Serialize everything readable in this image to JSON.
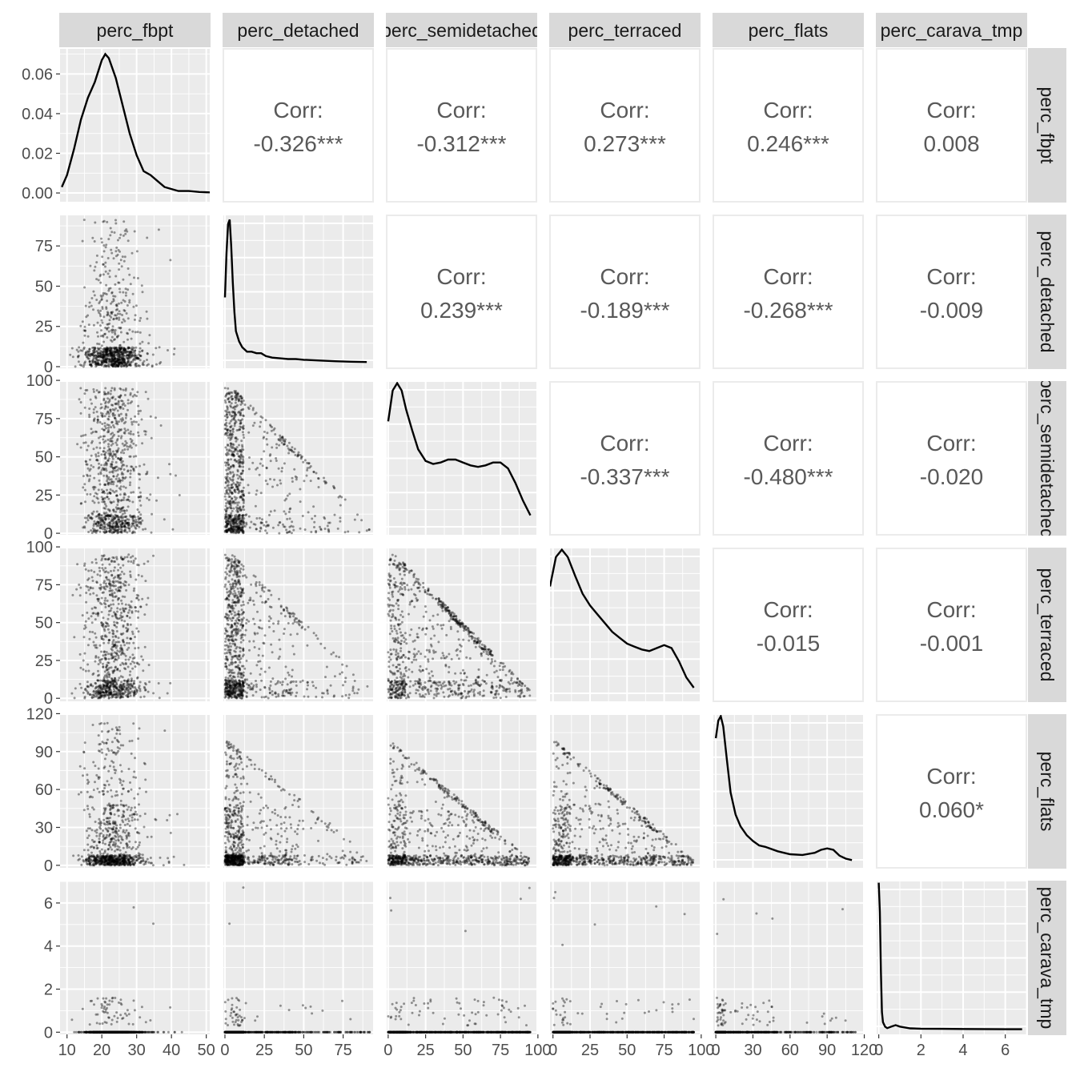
{
  "variables": [
    "perc_fbpt",
    "perc_detached",
    "perc_semidetached",
    "perc_terraced",
    "perc_flats",
    "perc_carava_tmp"
  ],
  "column_strip_labels": [
    "perc_fbpt",
    "perc_detached",
    "perc_semidetached",
    "perc_terraced",
    "perc_flats",
    "perc_carava_tmp"
  ],
  "row_strip_labels": [
    "perc_fbpt",
    "perc_detached",
    "perc_semidetached",
    "perc_terraced",
    "perc_flats",
    "perc_carava_tmp"
  ],
  "colors": {
    "panel_bg": "#ebebeb",
    "grid_major": "#ffffff",
    "strip_bg": "#d9d9d9",
    "corr_text": "#595959",
    "points": "#000000",
    "density_line": "#000000"
  },
  "chart_data": {
    "type": "scatterplot-matrix",
    "title": "",
    "grid": true,
    "legend": "none",
    "axis_ranges": {
      "perc_fbpt": [
        8,
        51
      ],
      "perc_detached": [
        -1,
        94
      ],
      "perc_semidetached": [
        -1,
        99
      ],
      "perc_terraced": [
        -2,
        99
      ],
      "perc_flats": [
        -2,
        119
      ],
      "perc_carava_tmp": [
        -0.1,
        7.0
      ]
    },
    "x_tick_labels": {
      "perc_fbpt": [
        "10",
        "20",
        "30",
        "40",
        "50"
      ],
      "perc_detached": [
        "0",
        "25",
        "50",
        "75"
      ],
      "perc_semidetached": [
        "0",
        "25",
        "50",
        "75",
        "100"
      ],
      "perc_terraced": [
        "0",
        "25",
        "50",
        "75",
        "100"
      ],
      "perc_flats": [
        "0",
        "30",
        "60",
        "90",
        "120"
      ],
      "perc_carava_tmp": [
        "0",
        "2",
        "4",
        "6"
      ]
    },
    "y_tick_labels": {
      "perc_fbpt_density": [
        "0.00",
        "0.02",
        "0.04",
        "0.06"
      ],
      "perc_detached": [
        "0",
        "25",
        "50",
        "75"
      ],
      "perc_semidetached": [
        "0",
        "25",
        "50",
        "75",
        "100"
      ],
      "perc_terraced": [
        "0",
        "25",
        "50",
        "75",
        "100"
      ],
      "perc_flats": [
        "0",
        "30",
        "60",
        "90",
        "120"
      ],
      "perc_carava_tmp": [
        "0",
        "2",
        "4",
        "6"
      ]
    },
    "correlations": [
      {
        "row": "perc_fbpt",
        "col": "perc_detached",
        "label": "Corr:",
        "value": "-0.326***"
      },
      {
        "row": "perc_fbpt",
        "col": "perc_semidetached",
        "label": "Corr:",
        "value": "-0.312***"
      },
      {
        "row": "perc_fbpt",
        "col": "perc_terraced",
        "label": "Corr:",
        "value": "0.273***"
      },
      {
        "row": "perc_fbpt",
        "col": "perc_flats",
        "label": "Corr:",
        "value": "0.246***"
      },
      {
        "row": "perc_fbpt",
        "col": "perc_carava_tmp",
        "label": "Corr:",
        "value": "0.008"
      },
      {
        "row": "perc_detached",
        "col": "perc_semidetached",
        "label": "Corr:",
        "value": "0.239***"
      },
      {
        "row": "perc_detached",
        "col": "perc_terraced",
        "label": "Corr:",
        "value": "-0.189***"
      },
      {
        "row": "perc_detached",
        "col": "perc_flats",
        "label": "Corr:",
        "value": "-0.268***"
      },
      {
        "row": "perc_detached",
        "col": "perc_carava_tmp",
        "label": "Corr:",
        "value": "-0.009"
      },
      {
        "row": "perc_semidetached",
        "col": "perc_terraced",
        "label": "Corr:",
        "value": "-0.337***"
      },
      {
        "row": "perc_semidetached",
        "col": "perc_flats",
        "label": "Corr:",
        "value": "-0.480***"
      },
      {
        "row": "perc_semidetached",
        "col": "perc_carava_tmp",
        "label": "Corr:",
        "value": "-0.020"
      },
      {
        "row": "perc_terraced",
        "col": "perc_flats",
        "label": "Corr:",
        "value": "-0.015"
      },
      {
        "row": "perc_terraced",
        "col": "perc_carava_tmp",
        "label": "Corr:",
        "value": "-0.001"
      },
      {
        "row": "perc_flats",
        "col": "perc_carava_tmp",
        "label": "Corr:",
        "value": "0.060*"
      }
    ],
    "densities": [
      {
        "variable": "perc_fbpt",
        "y_range": [
          -0.002,
          0.072
        ],
        "x": [
          8.5,
          10,
          12,
          14,
          16,
          18,
          20,
          21,
          22,
          24,
          26,
          28,
          30,
          32,
          34,
          36,
          38,
          40,
          42,
          45,
          48,
          51
        ],
        "y": [
          0.003,
          0.009,
          0.022,
          0.037,
          0.048,
          0.056,
          0.067,
          0.07,
          0.068,
          0.058,
          0.044,
          0.03,
          0.019,
          0.011,
          0.009,
          0.006,
          0.003,
          0.002,
          0.001,
          0.001,
          0.0005,
          0.0003
        ]
      },
      {
        "variable": "perc_detached",
        "y_range": [
          0,
          1
        ],
        "x": [
          0,
          1,
          2,
          3,
          4,
          5,
          6,
          7,
          9,
          11,
          14,
          17,
          20,
          23,
          26,
          30,
          35,
          40,
          45,
          50,
          60,
          70,
          80,
          90
        ],
        "y": [
          0.45,
          0.75,
          0.95,
          0.98,
          0.8,
          0.55,
          0.35,
          0.22,
          0.15,
          0.11,
          0.08,
          0.08,
          0.07,
          0.07,
          0.05,
          0.04,
          0.035,
          0.03,
          0.03,
          0.025,
          0.02,
          0.015,
          0.012,
          0.01
        ]
      },
      {
        "variable": "perc_semidetached",
        "y_range": [
          0,
          1
        ],
        "x": [
          0,
          3,
          6,
          9,
          12,
          16,
          20,
          25,
          30,
          35,
          40,
          45,
          50,
          55,
          60,
          65,
          70,
          75,
          80,
          85,
          90,
          95
        ],
        "y": [
          0.74,
          0.95,
          1.0,
          0.95,
          0.82,
          0.68,
          0.55,
          0.47,
          0.45,
          0.46,
          0.48,
          0.48,
          0.46,
          0.44,
          0.43,
          0.44,
          0.46,
          0.46,
          0.42,
          0.32,
          0.2,
          0.1
        ]
      },
      {
        "variable": "perc_terraced",
        "y_range": [
          0,
          1
        ],
        "x": [
          -2,
          2,
          6,
          10,
          15,
          20,
          25,
          30,
          35,
          40,
          45,
          50,
          55,
          60,
          65,
          70,
          75,
          80,
          85,
          90,
          95
        ],
        "y": [
          0.75,
          0.95,
          1.0,
          0.95,
          0.82,
          0.7,
          0.62,
          0.56,
          0.5,
          0.44,
          0.4,
          0.36,
          0.34,
          0.32,
          0.31,
          0.33,
          0.35,
          0.33,
          0.24,
          0.13,
          0.06
        ]
      },
      {
        "variable": "perc_flats",
        "y_range": [
          0,
          1
        ],
        "x": [
          0,
          2,
          4,
          6,
          9,
          12,
          16,
          20,
          25,
          30,
          35,
          40,
          50,
          60,
          70,
          80,
          85,
          90,
          95,
          100,
          105,
          110
        ],
        "y": [
          0.85,
          0.97,
          1.0,
          0.93,
          0.7,
          0.48,
          0.33,
          0.25,
          0.19,
          0.15,
          0.12,
          0.11,
          0.08,
          0.06,
          0.055,
          0.07,
          0.09,
          0.1,
          0.09,
          0.05,
          0.03,
          0.02
        ]
      },
      {
        "variable": "perc_carava_tmp",
        "y_range": [
          0,
          1
        ],
        "x": [
          0,
          0.05,
          0.1,
          0.15,
          0.2,
          0.3,
          0.4,
          0.6,
          0.8,
          1.0,
          1.5,
          2,
          3,
          4,
          5,
          6,
          6.8
        ],
        "y": [
          1.0,
          0.8,
          0.4,
          0.12,
          0.05,
          0.02,
          0.01,
          0.02,
          0.03,
          0.02,
          0.008,
          0.006,
          0.005,
          0.004,
          0.003,
          0.002,
          0.002
        ]
      }
    ]
  }
}
